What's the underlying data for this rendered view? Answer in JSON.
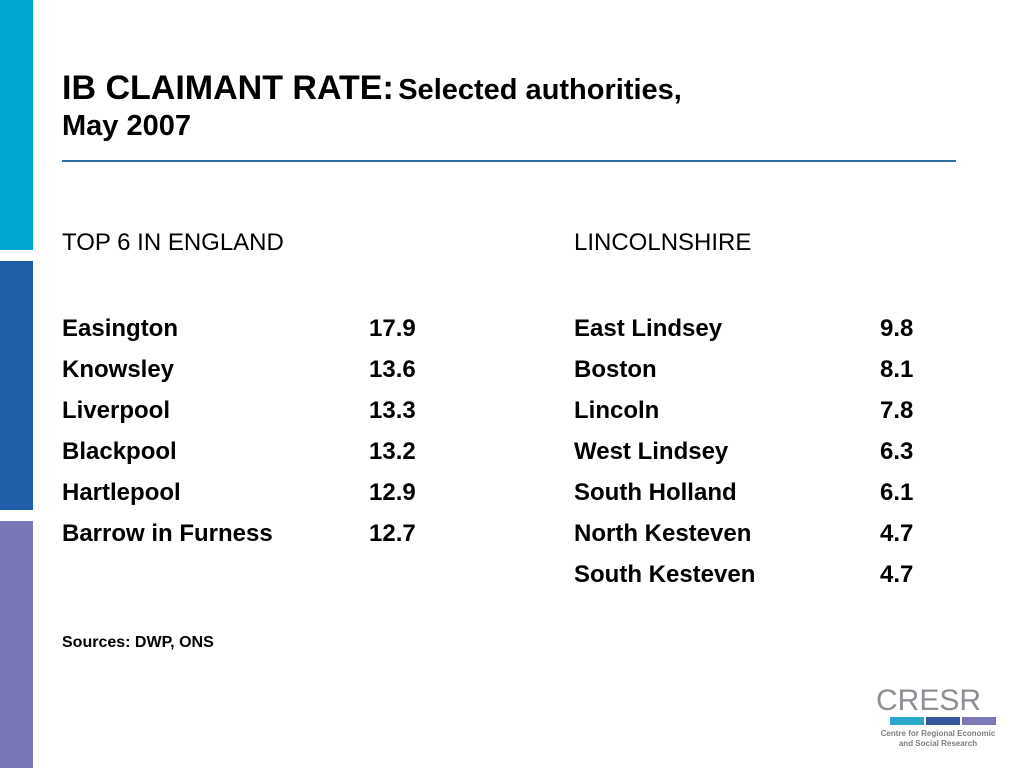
{
  "theme": {
    "sidebar_colors": [
      "#00a8d0",
      "#1f5fa8",
      "#7878b8"
    ],
    "rule_color": "#2e6f9e",
    "logo_stripe_colors": [
      "#2aa8cc",
      "#3557a0",
      "#7b78b5"
    ]
  },
  "title": {
    "main": "IB CLAIMANT RATE:",
    "sub": "Selected authorities,",
    "line2": "May 2007"
  },
  "england": {
    "heading": "TOP 6 IN ENGLAND",
    "rows": [
      {
        "name": "Easington",
        "value": "17.9"
      },
      {
        "name": "Knowsley",
        "value": "13.6"
      },
      {
        "name": "Liverpool",
        "value": "13.3"
      },
      {
        "name": "Blackpool",
        "value": "13.2"
      },
      {
        "name": "Hartlepool",
        "value": "12.9"
      },
      {
        "name": "Barrow in Furness",
        "value": "12.7"
      }
    ]
  },
  "lincolnshire": {
    "heading": "LINCOLNSHIRE",
    "rows": [
      {
        "name": "East Lindsey",
        "value": "9.8"
      },
      {
        "name": "Boston",
        "value": "8.1"
      },
      {
        "name": "Lincoln",
        "value": "7.8"
      },
      {
        "name": "West Lindsey",
        "value": "6.3"
      },
      {
        "name": "South Holland",
        "value": "6.1"
      },
      {
        "name": "North Kesteven",
        "value": "4.7"
      },
      {
        "name": "South Kesteven",
        "value": "4.7"
      }
    ]
  },
  "sources": "Sources: DWP, ONS",
  "logo": {
    "word": "CRESR",
    "tagline_line1": "Centre for Regional Economic",
    "tagline_line2": "and Social Research"
  }
}
